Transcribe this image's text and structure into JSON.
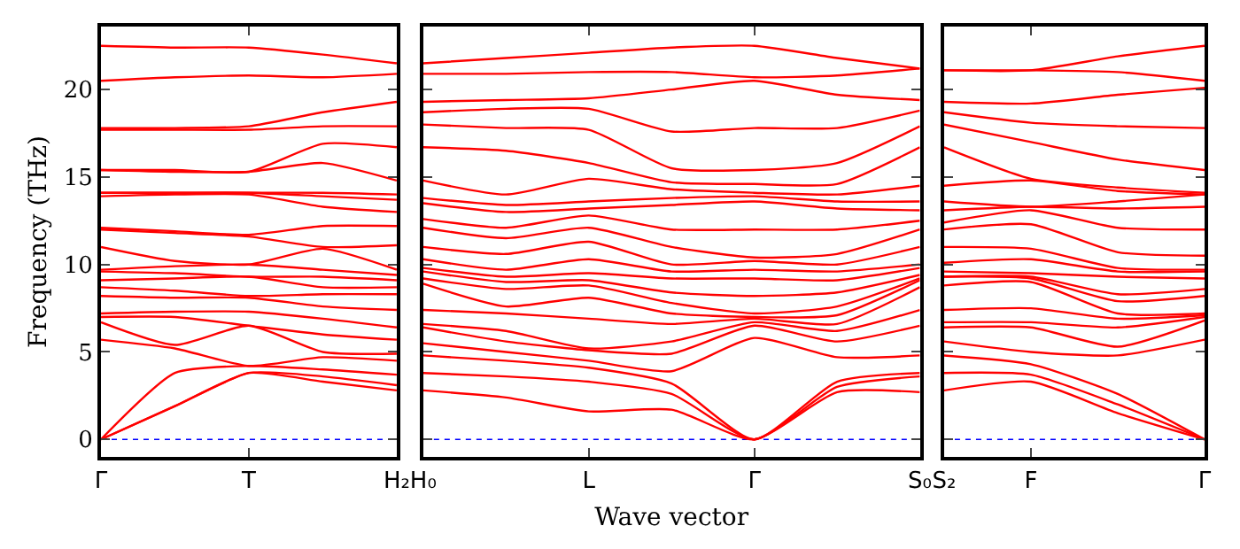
{
  "chart_data": [
    {
      "type": "line",
      "ylabel": "Frequency (THz)",
      "categories": [
        "Γ",
        null,
        "T",
        null,
        "H₂"
      ],
      "ylim": [
        -1,
        23.6
      ],
      "yticks": [
        0,
        5,
        10,
        15,
        20
      ],
      "grid": false,
      "line_style": "solid",
      "marker": "none",
      "ref_lines": [
        {
          "axis": "y",
          "value": 0,
          "color": "#0000ff",
          "line_style": "dotted"
        }
      ],
      "series": [
        {
          "color": "#ff0000",
          "values": [
            0,
            1.9,
            3.8,
            3.3,
            2.8
          ]
        },
        {
          "color": "#ff0000",
          "values": [
            0,
            1.9,
            3.8,
            3.6,
            3.1
          ]
        },
        {
          "color": "#ff0000",
          "values": [
            0,
            3.8,
            4.2,
            4.0,
            3.7
          ]
        },
        {
          "color": "#ff0000",
          "values": [
            5.7,
            5.2,
            4.2,
            4.7,
            4.5
          ]
        },
        {
          "color": "#ff0000",
          "values": [
            6.7,
            5.4,
            6.5,
            5.0,
            4.9
          ]
        },
        {
          "color": "#ff0000",
          "values": [
            7.0,
            7.0,
            6.5,
            6.0,
            5.7
          ]
        },
        {
          "color": "#ff0000",
          "values": [
            7.2,
            7.3,
            7.3,
            6.9,
            6.4
          ]
        },
        {
          "color": "#ff0000",
          "values": [
            8.2,
            8.1,
            8.1,
            7.6,
            7.4
          ]
        },
        {
          "color": "#ff0000",
          "values": [
            8.7,
            8.5,
            8.2,
            8.3,
            8.3
          ]
        },
        {
          "color": "#ff0000",
          "values": [
            9.1,
            9.2,
            9.3,
            8.7,
            8.7
          ]
        },
        {
          "color": "#ff0000",
          "values": [
            9.6,
            9.5,
            9.3,
            9.3,
            9.1
          ]
        },
        {
          "color": "#ff0000",
          "values": [
            9.7,
            9.9,
            10.0,
            9.7,
            9.4
          ]
        },
        {
          "color": "#ff0000",
          "values": [
            11.0,
            10.2,
            10.0,
            10.9,
            9.7
          ]
        },
        {
          "color": "#ff0000",
          "values": [
            12.0,
            11.8,
            11.6,
            11.0,
            11.1
          ]
        },
        {
          "color": "#ff0000",
          "values": [
            12.1,
            11.9,
            11.7,
            12.2,
            12.2
          ]
        },
        {
          "color": "#ff0000",
          "values": [
            13.9,
            14.0,
            14.0,
            13.3,
            13.0
          ]
        },
        {
          "color": "#ff0000",
          "values": [
            14.1,
            14.1,
            14.1,
            13.9,
            13.7
          ]
        },
        {
          "color": "#ff0000",
          "values": [
            14.1,
            14.1,
            14.1,
            14.1,
            14.0
          ]
        },
        {
          "color": "#ff0000",
          "values": [
            15.4,
            15.3,
            15.3,
            15.8,
            14.8
          ]
        },
        {
          "color": "#ff0000",
          "values": [
            15.4,
            15.4,
            15.3,
            16.9,
            16.7
          ]
        },
        {
          "color": "#ff0000",
          "values": [
            17.7,
            17.7,
            17.7,
            17.9,
            17.9
          ]
        },
        {
          "color": "#ff0000",
          "values": [
            17.8,
            17.8,
            17.9,
            18.7,
            19.3
          ]
        },
        {
          "color": "#ff0000",
          "values": [
            20.5,
            20.7,
            20.8,
            20.7,
            20.9
          ]
        },
        {
          "color": "#ff0000",
          "values": [
            22.5,
            22.4,
            22.4,
            22.0,
            21.5
          ]
        }
      ]
    },
    {
      "type": "line",
      "xlabel": "Wave vector",
      "categories": [
        "H₀",
        null,
        "L",
        null,
        "Γ",
        null,
        "S₀"
      ],
      "ylim": [
        -1,
        23.6
      ],
      "yticks": [
        0,
        5,
        10,
        15,
        20
      ],
      "tick_labels": "x",
      "grid": false,
      "line_style": "solid",
      "marker": "none",
      "ref_lines": [
        {
          "axis": "y",
          "value": 0,
          "color": "#0000ff",
          "line_style": "dotted"
        }
      ],
      "series": [
        {
          "color": "#ff0000",
          "values": [
            2.8,
            2.4,
            1.6,
            1.7,
            0,
            2.7,
            2.7
          ]
        },
        {
          "color": "#ff0000",
          "values": [
            3.8,
            3.6,
            3.3,
            2.6,
            0,
            3.0,
            3.6
          ]
        },
        {
          "color": "#ff0000",
          "values": [
            4.8,
            4.5,
            4.1,
            3.2,
            0,
            3.3,
            3.8
          ]
        },
        {
          "color": "#ff0000",
          "values": [
            5.5,
            5.0,
            4.5,
            3.9,
            5.8,
            4.7,
            4.8
          ]
        },
        {
          "color": "#ff0000",
          "values": [
            6.4,
            5.6,
            5.1,
            4.9,
            6.5,
            5.6,
            6.5
          ]
        },
        {
          "color": "#ff0000",
          "values": [
            6.6,
            6.2,
            5.2,
            5.6,
            6.7,
            6.2,
            7.4
          ]
        },
        {
          "color": "#ff0000",
          "values": [
            7.4,
            7.2,
            6.9,
            6.6,
            6.9,
            6.6,
            8.7
          ]
        },
        {
          "color": "#ff0000",
          "values": [
            8.9,
            7.6,
            8.1,
            7.2,
            7.0,
            7.1,
            9.1
          ]
        },
        {
          "color": "#ff0000",
          "values": [
            9.2,
            8.6,
            8.8,
            7.8,
            7.2,
            7.6,
            9.2
          ]
        },
        {
          "color": "#ff0000",
          "values": [
            9.6,
            9.0,
            9.1,
            8.4,
            8.2,
            8.4,
            9.4
          ]
        },
        {
          "color": "#ff0000",
          "values": [
            9.8,
            9.3,
            9.5,
            9.2,
            9.2,
            9.1,
            9.8
          ]
        },
        {
          "color": "#ff0000",
          "values": [
            10.3,
            9.7,
            10.3,
            9.6,
            9.7,
            9.6,
            10.0
          ]
        },
        {
          "color": "#ff0000",
          "values": [
            11.0,
            10.6,
            11.3,
            10.0,
            10.2,
            10.0,
            11.0
          ]
        },
        {
          "color": "#ff0000",
          "values": [
            12.1,
            11.5,
            12.1,
            11.0,
            10.4,
            10.6,
            12.0
          ]
        },
        {
          "color": "#ff0000",
          "values": [
            12.6,
            12.1,
            12.8,
            12.0,
            12.0,
            12.0,
            12.5
          ]
        },
        {
          "color": "#ff0000",
          "values": [
            13.5,
            13.0,
            13.2,
            13.4,
            13.6,
            13.2,
            13.1
          ]
        },
        {
          "color": "#ff0000",
          "values": [
            13.8,
            13.4,
            13.6,
            13.8,
            13.9,
            13.6,
            13.6
          ]
        },
        {
          "color": "#ff0000",
          "values": [
            14.8,
            14.0,
            14.9,
            14.3,
            14.1,
            14.0,
            14.5
          ]
        },
        {
          "color": "#ff0000",
          "values": [
            16.7,
            16.5,
            15.8,
            14.7,
            14.6,
            14.6,
            16.7
          ]
        },
        {
          "color": "#ff0000",
          "values": [
            18.0,
            17.8,
            17.7,
            15.5,
            15.4,
            15.8,
            17.9
          ]
        },
        {
          "color": "#ff0000",
          "values": [
            18.7,
            18.9,
            18.9,
            17.6,
            17.8,
            17.8,
            18.8
          ]
        },
        {
          "color": "#ff0000",
          "values": [
            19.3,
            19.4,
            19.5,
            20.0,
            20.5,
            19.7,
            19.4
          ]
        },
        {
          "color": "#ff0000",
          "values": [
            20.9,
            20.9,
            21.0,
            21.0,
            20.7,
            20.8,
            21.2
          ]
        },
        {
          "color": "#ff0000",
          "values": [
            21.5,
            21.8,
            22.1,
            22.4,
            22.5,
            21.8,
            21.2
          ]
        }
      ]
    },
    {
      "type": "line",
      "categories": [
        "S₂",
        "F",
        null,
        "Γ"
      ],
      "ylim": [
        -1,
        23.6
      ],
      "yticks": [
        0,
        5,
        10,
        15,
        20
      ],
      "tick_labels": "x",
      "grid": false,
      "line_style": "solid",
      "marker": "none",
      "ref_lines": [
        {
          "axis": "y",
          "value": 0,
          "color": "#0000ff",
          "line_style": "dotted"
        }
      ],
      "series": [
        {
          "color": "#ff0000",
          "values": [
            2.8,
            3.3,
            1.5,
            0
          ]
        },
        {
          "color": "#ff0000",
          "values": [
            3.8,
            3.7,
            2.0,
            0
          ]
        },
        {
          "color": "#ff0000",
          "values": [
            4.8,
            4.3,
            2.6,
            0
          ]
        },
        {
          "color": "#ff0000",
          "values": [
            5.6,
            5.0,
            4.8,
            5.7
          ]
        },
        {
          "color": "#ff0000",
          "values": [
            6.4,
            6.4,
            5.3,
            6.8
          ]
        },
        {
          "color": "#ff0000",
          "values": [
            6.7,
            6.7,
            6.4,
            7.0
          ]
        },
        {
          "color": "#ff0000",
          "values": [
            7.4,
            7.5,
            6.9,
            7.1
          ]
        },
        {
          "color": "#ff0000",
          "values": [
            8.8,
            9.0,
            7.2,
            7.2
          ]
        },
        {
          "color": "#ff0000",
          "values": [
            9.3,
            9.2,
            7.9,
            8.2
          ]
        },
        {
          "color": "#ff0000",
          "values": [
            9.3,
            9.3,
            8.3,
            8.6
          ]
        },
        {
          "color": "#ff0000",
          "values": [
            9.6,
            9.5,
            9.3,
            9.2
          ]
        },
        {
          "color": "#ff0000",
          "values": [
            10.1,
            10.3,
            9.6,
            9.6
          ]
        },
        {
          "color": "#ff0000",
          "values": [
            11.0,
            10.9,
            9.8,
            9.7
          ]
        },
        {
          "color": "#ff0000",
          "values": [
            12.0,
            12.3,
            10.7,
            10.5
          ]
        },
        {
          "color": "#ff0000",
          "values": [
            12.4,
            13.1,
            12.1,
            12.0
          ]
        },
        {
          "color": "#ff0000",
          "values": [
            13.1,
            13.3,
            13.2,
            13.3
          ]
        },
        {
          "color": "#ff0000",
          "values": [
            13.6,
            13.3,
            13.6,
            14.0
          ]
        },
        {
          "color": "#ff0000",
          "values": [
            14.5,
            14.8,
            14.2,
            14.0
          ]
        },
        {
          "color": "#ff0000",
          "values": [
            16.7,
            14.9,
            14.4,
            14.1
          ]
        },
        {
          "color": "#ff0000",
          "values": [
            18.0,
            17.0,
            16.0,
            15.4
          ]
        },
        {
          "color": "#ff0000",
          "values": [
            18.7,
            18.1,
            17.9,
            17.8
          ]
        },
        {
          "color": "#ff0000",
          "values": [
            19.3,
            19.2,
            19.7,
            20.1
          ]
        },
        {
          "color": "#ff0000",
          "values": [
            21.1,
            21.1,
            21.0,
            20.5
          ]
        },
        {
          "color": "#ff0000",
          "values": [
            21.1,
            21.1,
            21.9,
            22.5
          ]
        }
      ]
    }
  ]
}
